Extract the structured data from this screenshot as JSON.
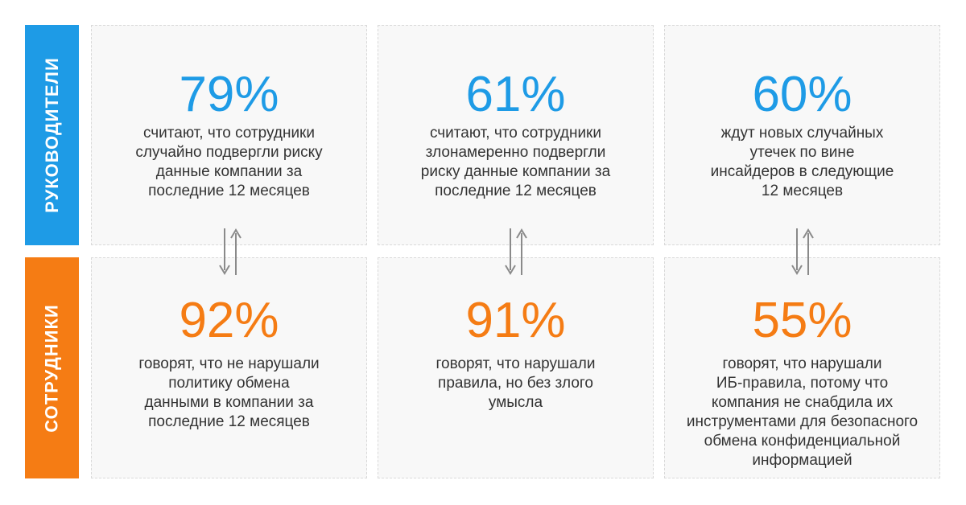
{
  "categories": {
    "managers": "РУКОВОДИТЕЛИ",
    "employees": "СОТРУДНИКИ"
  },
  "colors": {
    "managers": "#1e9be6",
    "employees": "#f57c14",
    "arrow": "#8a8a8a"
  },
  "managers_stats": [
    {
      "percent": "79%",
      "text": "считают, что сотрудники\nслучайно подвергли риску\nданные компании за\nпоследние 12 месяцев"
    },
    {
      "percent": "61%",
      "text": "считают, что сотрудники\nзлонамеренно подвергли\nриску данные компании за\nпоследние 12 месяцев"
    },
    {
      "percent": "60%",
      "text": "ждут новых случайных\nутечек по вине\nинсайдеров в следующие\n12 месяцев"
    }
  ],
  "employees_stats": [
    {
      "percent": "92%",
      "text": "говорят, что не нарушали\nполитику обмена\nданными в компании за\nпоследние 12 месяцев"
    },
    {
      "percent": "91%",
      "text": "говорят, что нарушали\nправила, но без злого\nумысла"
    },
    {
      "percent": "55%",
      "text": "говорят, что нарушали\nИБ-правила, потому что\nкомпания не снабдила их\nинструментами для безопасного\nобмена конфиденциальной\nинформацией"
    }
  ],
  "icons": {
    "connector": "bidirectional-arrows-icon"
  }
}
